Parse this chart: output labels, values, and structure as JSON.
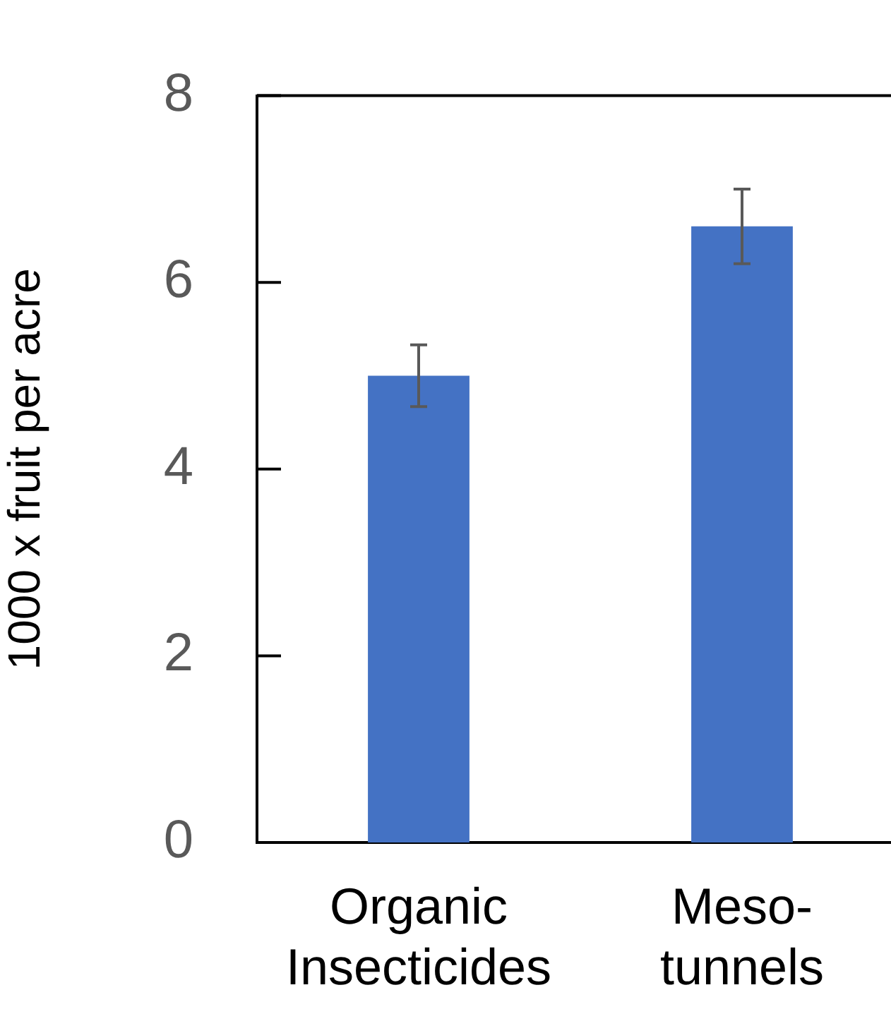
{
  "chart_data": {
    "type": "bar",
    "ylabel": "1000 x fruit per acre",
    "categories": [
      "Organic Insecticides",
      "Meso-tunnels"
    ],
    "values": [
      5.0,
      6.6
    ],
    "color": "#4472c4",
    "errors": [
      0.33,
      0.4
    ],
    "ylim": [
      0,
      8
    ],
    "yticks": [
      0,
      2,
      4,
      6,
      8
    ],
    "grid": false,
    "legend": false
  }
}
